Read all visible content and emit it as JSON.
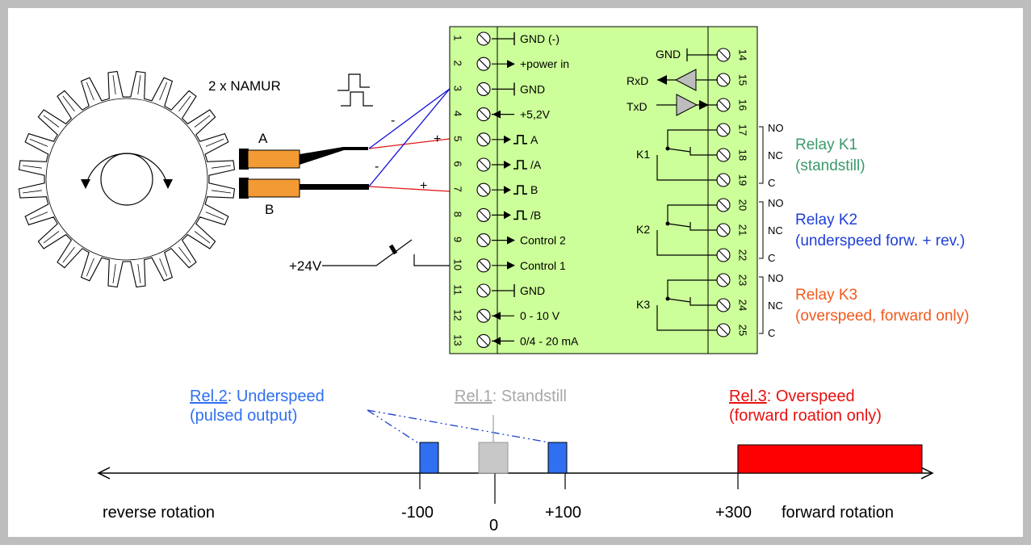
{
  "sensor": {
    "namur_label": "2 x NAMUR",
    "sensor_a": "A",
    "sensor_b": "B",
    "minus": "-",
    "plus": "+"
  },
  "left_terminals": [
    {
      "num": "1",
      "label": "GND (-)",
      "sym": "gnd"
    },
    {
      "num": "2",
      "label": "+power in",
      "sym": "in"
    },
    {
      "num": "3",
      "label": "GND",
      "sym": "gnd"
    },
    {
      "num": "4",
      "label": "+5,2V",
      "sym": "out"
    },
    {
      "num": "5",
      "label": "A",
      "sym": "pulse"
    },
    {
      "num": "6",
      "label": "/A",
      "sym": "pulse"
    },
    {
      "num": "7",
      "label": "B",
      "sym": "pulse"
    },
    {
      "num": "8",
      "label": "/B",
      "sym": "pulse"
    },
    {
      "num": "9",
      "label": "Control 2",
      "sym": "in"
    },
    {
      "num": "10",
      "label": "Control 1",
      "sym": "in"
    },
    {
      "num": "11",
      "label": "GND",
      "sym": "gnd"
    },
    {
      "num": "12",
      "label": "0 - 10 V",
      "sym": "out"
    },
    {
      "num": "13",
      "label": "0/4 - 20 mA",
      "sym": "out"
    }
  ],
  "right_terminals": [
    "14",
    "15",
    "16",
    "17",
    "18",
    "19",
    "20",
    "21",
    "22",
    "23",
    "24",
    "25"
  ],
  "serial": {
    "gnd": "GND",
    "rxd": "RxD",
    "txd": "TxD"
  },
  "relays": [
    {
      "coil": "K1",
      "title": "Relay K1",
      "subtitle": "(standstill)",
      "color": "#3a9a6a"
    },
    {
      "coil": "K2",
      "title": "Relay K2",
      "subtitle": "(underspeed forw. + rev.)",
      "color": "#1f3fd6"
    },
    {
      "coil": "K3",
      "title": "Relay K3",
      "subtitle": "(overspeed, forward only)",
      "color": "#f05a1e"
    }
  ],
  "contacts": {
    "no": "NO",
    "nc": "NC",
    "c": "C"
  },
  "switch_label": "+24V",
  "speed_axis": {
    "reverse_label": "reverse rotation",
    "forward_label": "forward rotation",
    "ticks": [
      "-100",
      "0",
      "+100",
      "+300"
    ],
    "rel2_link": "Rel.2",
    "rel2_text": ": Underspeed",
    "rel2_sub": "(pulsed output)",
    "rel1_link": "Rel.1",
    "rel1_text": ": Standstill",
    "rel3_link": "Rel.3",
    "rel3_text": ": Overspeed",
    "rel3_sub": "(forward roation only)",
    "colors": {
      "underspeed": "#2f6ff0",
      "standstill": "#c8c8c8",
      "overspeed": "#ff0000",
      "rel1_text": "#a8a8a8",
      "rel3_text": "#e81010"
    }
  }
}
